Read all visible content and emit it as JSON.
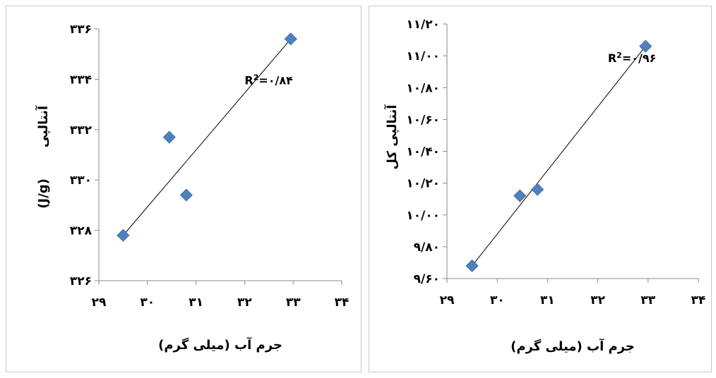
{
  "chart_data": [
    {
      "type": "scatter",
      "xlabel": "جرم آب (میلی گرم)",
      "ylabel": "آنتالپی (J/g)",
      "ylabel_main": "آنتالپی",
      "ylabel_unit": "(J/g)",
      "xlim": [
        29,
        34
      ],
      "ylim": [
        326,
        336
      ],
      "x_ticks": [
        29,
        30,
        31,
        32,
        33,
        34
      ],
      "x_tick_labels": [
        "۲۹",
        "۳۰",
        "۳۱",
        "۳۲",
        "۳۳",
        "۳۴"
      ],
      "y_ticks": [
        326,
        328,
        330,
        332,
        334,
        336
      ],
      "y_tick_labels": [
        "۳۲۶",
        "۳۲۸",
        "۳۳۰",
        "۳۳۲",
        "۳۳۴",
        "۳۳۶"
      ],
      "grid": false,
      "series": [
        {
          "marker": "diamond",
          "color": "#4f81bd",
          "points": [
            [
              29.5,
              327.8
            ],
            [
              30.45,
              331.7
            ],
            [
              30.8,
              329.4
            ],
            [
              32.95,
              335.6
            ]
          ]
        }
      ],
      "trendline": {
        "from": [
          29.5,
          327.8
        ],
        "to": [
          32.95,
          335.6
        ]
      },
      "annotation": {
        "base": "R",
        "sup": "2",
        "value": "=۰/۸۴",
        "at": [
          32.0,
          333.8
        ]
      }
    },
    {
      "type": "scatter",
      "xlabel": "جرم آب (میلی گرم)",
      "ylabel": "آنتالپی کل",
      "xlim": [
        29,
        34
      ],
      "ylim": [
        9.6,
        11.2
      ],
      "x_ticks": [
        29,
        30,
        31,
        32,
        33,
        34
      ],
      "x_tick_labels": [
        "۲۹",
        "۳۰",
        "۳۱",
        "۳۲",
        "۳۳",
        "۳۴"
      ],
      "y_ticks": [
        9.6,
        9.8,
        10.0,
        10.2,
        10.4,
        10.6,
        10.8,
        11.0,
        11.2
      ],
      "y_tick_labels": [
        "۹/۶۰",
        "۹/۸۰",
        "۱۰/۰۰",
        "۱۰/۲۰",
        "۱۰/۴۰",
        "۱۰/۶۰",
        "۱۰/۸۰",
        "۱۱/۰۰",
        "۱۱/۲۰"
      ],
      "grid": false,
      "series": [
        {
          "marker": "diamond",
          "color": "#4f81bd",
          "points": [
            [
              29.5,
              9.68
            ],
            [
              30.45,
              10.12
            ],
            [
              30.8,
              10.16
            ],
            [
              32.95,
              11.06
            ]
          ]
        }
      ],
      "trendline": {
        "from": [
          29.5,
          9.68
        ],
        "to": [
          32.95,
          11.06
        ]
      },
      "annotation": {
        "base": "R",
        "sup": "2",
        "value": "=۰/۹۶",
        "at": [
          32.2,
          10.96
        ]
      }
    }
  ]
}
